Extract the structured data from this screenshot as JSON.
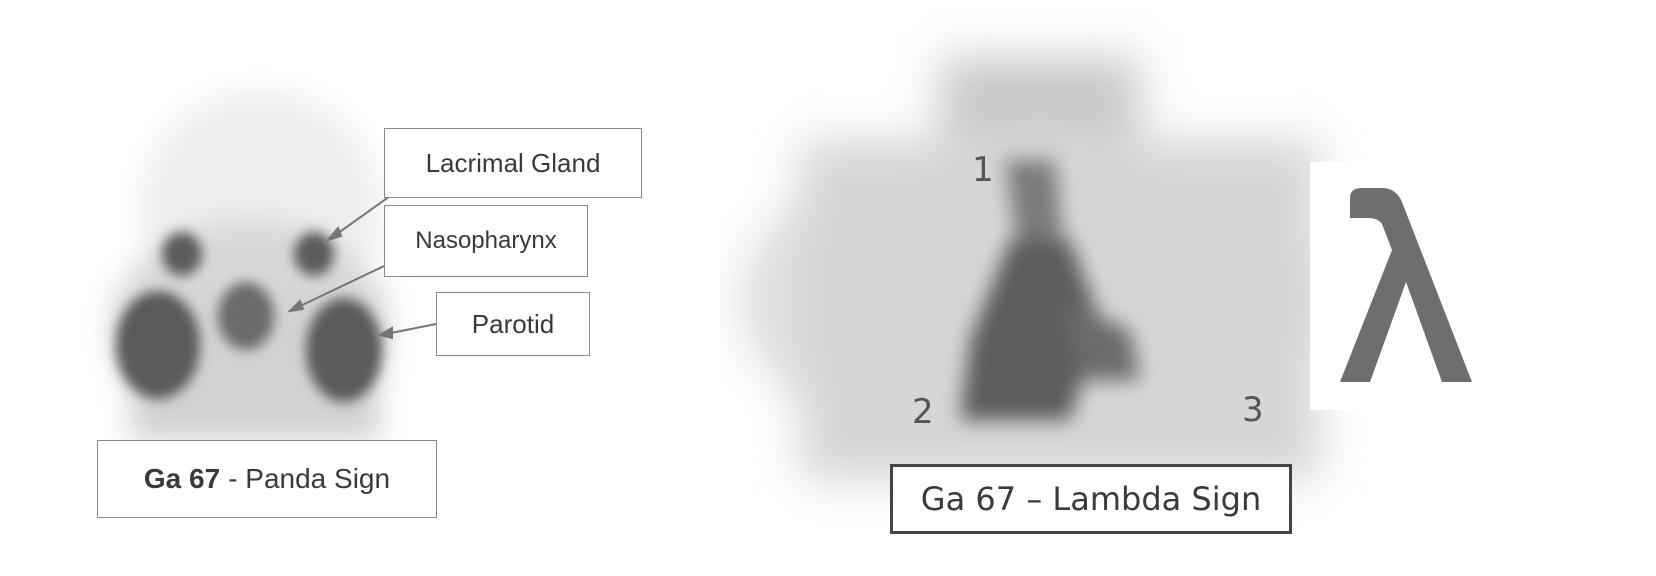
{
  "left_panel": {
    "labels": {
      "lacrimal": "Lacrimal Gland",
      "nasopharynx": "Nasopharynx",
      "parotid": "Parotid"
    },
    "caption": {
      "bold": "Ga 67",
      "rest": "- Panda Sign"
    }
  },
  "right_panel": {
    "numbers": [
      "1",
      "2",
      "3"
    ],
    "caption": "Ga 67 – Lambda Sign",
    "symbol": "λ"
  },
  "colors": {
    "uptake_dark": "#5a5a5a",
    "tissue_light": "#d9d9d9",
    "lambda_symbol": "#6e6e6e"
  }
}
